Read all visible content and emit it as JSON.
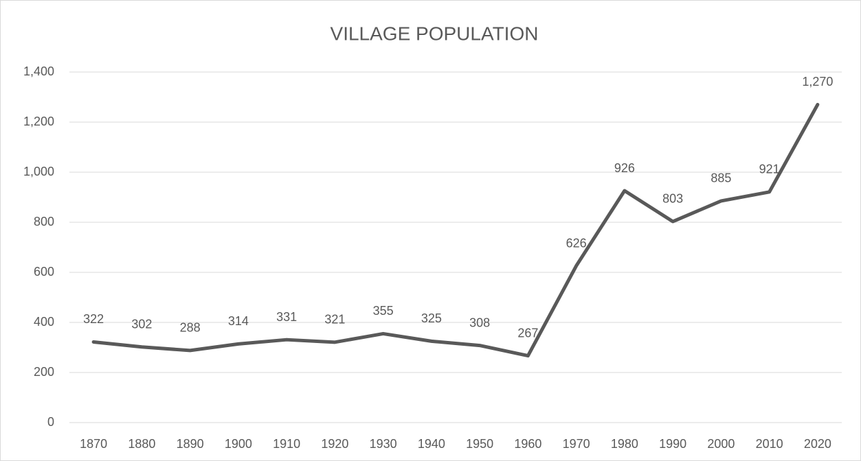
{
  "chart_data": {
    "type": "line",
    "title": "VILLAGE POPULATION",
    "categories": [
      "1870",
      "1880",
      "1890",
      "1900",
      "1910",
      "1920",
      "1930",
      "1940",
      "1950",
      "1960",
      "1970",
      "1980",
      "1990",
      "2000",
      "2010",
      "2020"
    ],
    "values": [
      322,
      302,
      288,
      314,
      331,
      321,
      355,
      325,
      308,
      267,
      626,
      926,
      803,
      885,
      921,
      1270
    ],
    "value_labels": [
      "322",
      "302",
      "288",
      "314",
      "331",
      "321",
      "355",
      "325",
      "308",
      "267",
      "626",
      "926",
      "803",
      "885",
      "921",
      "1,270"
    ],
    "color": "#595959",
    "ylim": [
      0,
      1400
    ],
    "yticks": [
      0,
      200,
      400,
      600,
      800,
      {
        "value": 1000,
        "label": "1,000"
      },
      {
        "value": 1200,
        "label": "1,200"
      },
      {
        "value": 1400,
        "label": "1,400"
      }
    ],
    "grid": true
  }
}
